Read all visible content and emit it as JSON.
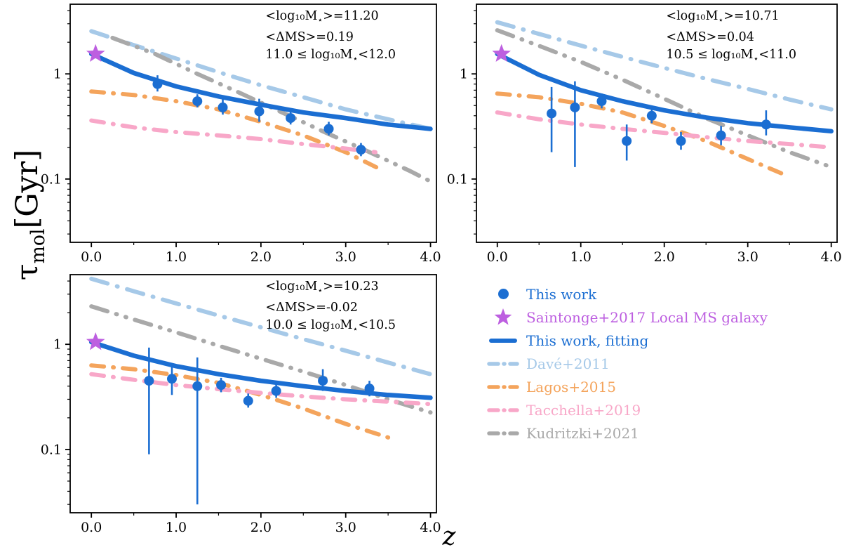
{
  "figure": {
    "background": "#ffffff",
    "y_axis_label": {
      "tau": "τ",
      "sub": "mol",
      "unit": "[Gyr]"
    },
    "x_axis_label": "z"
  },
  "colors": {
    "this_work": "#1b6ed2",
    "saintonge": "#bd5fe0",
    "dave": "#a6c9e8",
    "lagos": "#f4a45c",
    "tacchella": "#f8a7c8",
    "kudritzki": "#a9a9a9"
  },
  "legend": {
    "items": [
      {
        "label": "This work",
        "marker": "circle",
        "color_key": "this_work"
      },
      {
        "label": "Saintonge+2017 Local MS galaxy",
        "marker": "star",
        "color_key": "saintonge"
      },
      {
        "label": "This work, fitting",
        "marker": "solid_line",
        "color_key": "this_work"
      },
      {
        "label": "Davé+2011",
        "marker": "dashdot_line",
        "color_key": "dave"
      },
      {
        "label": "Lagos+2015",
        "marker": "dashdot_line",
        "color_key": "lagos"
      },
      {
        "label": "Tacchella+2019",
        "marker": "dashdot_line",
        "color_key": "tacchella"
      },
      {
        "label": "Kudritzki+2021",
        "marker": "dashdot_line",
        "color_key": "kudritzki"
      }
    ]
  },
  "chart_data": {
    "type": "scatter",
    "description": "Molecular gas depletion time vs redshift in three stellar-mass bins, log y-scale, with literature comparison curves",
    "x_axis": {
      "label": "z",
      "range": [
        -0.25,
        4.07
      ],
      "values": [
        0,
        1,
        2,
        3,
        4
      ],
      "ticks": [
        "0.0",
        "1.0",
        "2.0",
        "3.0",
        "4.0"
      ]
    },
    "y_axis": {
      "label": "tau_mol [Gyr]",
      "scale": "log",
      "range": [
        0.025,
        4.6
      ],
      "values": [
        1,
        0.1
      ],
      "ticks": [
        "1",
        "0.1"
      ]
    },
    "panels": [
      {
        "name": "logM-11.0-12.0",
        "annotation": [
          "<log₁₀M⋆>=11.20",
          "<ΔMS>=0.19",
          "11.0 ≤ log₁₀M⋆<12.0"
        ],
        "star": {
          "z": 0.05,
          "tau": 1.55
        },
        "points": {
          "z": [
            0.78,
            1.25,
            1.55,
            1.98,
            2.35,
            2.8,
            3.18
          ],
          "tau": [
            0.8,
            0.55,
            0.48,
            0.44,
            0.38,
            0.3,
            0.19
          ],
          "err_lo": [
            0.12,
            0.07,
            0.07,
            0.09,
            0.05,
            0.04,
            0.025
          ],
          "err_hi": [
            0.17,
            0.09,
            0.11,
            0.14,
            0.06,
            0.05,
            0.03
          ]
        },
        "fit": [
          [
            0,
            1.55
          ],
          [
            0.5,
            1.02
          ],
          [
            1,
            0.76
          ],
          [
            1.5,
            0.61
          ],
          [
            2,
            0.51
          ],
          [
            2.5,
            0.43
          ],
          [
            3,
            0.38
          ],
          [
            3.5,
            0.33
          ],
          [
            4,
            0.3
          ]
        ],
        "dave": [
          [
            0,
            2.55
          ],
          [
            0.5,
            1.88
          ],
          [
            1,
            1.4
          ],
          [
            1.5,
            1.04
          ],
          [
            2,
            0.78
          ],
          [
            2.5,
            0.6
          ],
          [
            3,
            0.46
          ],
          [
            3.5,
            0.37
          ],
          [
            4,
            0.3
          ]
        ],
        "kudritzki": [
          [
            0.25,
            2.2
          ],
          [
            0.75,
            1.55
          ],
          [
            1.25,
            1.0
          ],
          [
            1.75,
            0.66
          ],
          [
            2.25,
            0.43
          ],
          [
            2.75,
            0.28
          ],
          [
            3.25,
            0.185
          ],
          [
            3.75,
            0.12
          ],
          [
            4,
            0.095
          ]
        ],
        "lagos": [
          [
            0,
            0.68
          ],
          [
            0.5,
            0.63
          ],
          [
            1,
            0.55
          ],
          [
            1.5,
            0.46
          ],
          [
            2,
            0.35
          ],
          [
            2.5,
            0.26
          ],
          [
            3,
            0.18
          ],
          [
            3.4,
            0.125
          ]
        ],
        "tacchella": [
          [
            0,
            0.36
          ],
          [
            0.5,
            0.31
          ],
          [
            1,
            0.28
          ],
          [
            1.5,
            0.26
          ],
          [
            2,
            0.24
          ],
          [
            2.5,
            0.215
          ],
          [
            3,
            0.195
          ],
          [
            3.35,
            0.18
          ]
        ]
      },
      {
        "name": "logM-10.5-11.0",
        "annotation": [
          "<log₁₀M⋆>=10.71",
          "<ΔMS>=0.04",
          "10.5 ≤ log₁₀M⋆<11.0"
        ],
        "star": {
          "z": 0.05,
          "tau": 1.55
        },
        "points": {
          "z": [
            0.65,
            0.93,
            1.25,
            1.55,
            1.85,
            2.2,
            2.68,
            3.22
          ],
          "tau": [
            0.42,
            0.48,
            0.55,
            0.23,
            0.4,
            0.23,
            0.26,
            0.33
          ],
          "err_lo": [
            0.24,
            0.35,
            0.08,
            0.08,
            0.06,
            0.04,
            0.05,
            0.07
          ],
          "err_hi": [
            0.33,
            0.37,
            0.1,
            0.1,
            0.07,
            0.05,
            0.06,
            0.12
          ]
        },
        "fit": [
          [
            0,
            1.55
          ],
          [
            0.5,
            0.98
          ],
          [
            1,
            0.7
          ],
          [
            1.5,
            0.55
          ],
          [
            2,
            0.45
          ],
          [
            2.5,
            0.385
          ],
          [
            3,
            0.34
          ],
          [
            3.5,
            0.31
          ],
          [
            4,
            0.285
          ]
        ],
        "dave": [
          [
            0,
            3.1
          ],
          [
            0.5,
            2.4
          ],
          [
            1,
            1.86
          ],
          [
            1.5,
            1.45
          ],
          [
            2,
            1.14
          ],
          [
            2.5,
            0.9
          ],
          [
            3,
            0.72
          ],
          [
            3.5,
            0.57
          ],
          [
            4,
            0.46
          ]
        ],
        "kudritzki": [
          [
            0,
            2.6
          ],
          [
            0.5,
            1.85
          ],
          [
            1,
            1.3
          ],
          [
            1.5,
            0.88
          ],
          [
            2,
            0.58
          ],
          [
            2.5,
            0.38
          ],
          [
            3,
            0.26
          ],
          [
            3.5,
            0.18
          ],
          [
            4,
            0.13
          ]
        ],
        "lagos": [
          [
            0,
            0.65
          ],
          [
            0.5,
            0.6
          ],
          [
            1,
            0.52
          ],
          [
            1.5,
            0.43
          ],
          [
            2,
            0.32
          ],
          [
            2.5,
            0.23
          ],
          [
            3,
            0.155
          ],
          [
            3.5,
            0.105
          ]
        ],
        "tacchella": [
          [
            0,
            0.43
          ],
          [
            0.5,
            0.37
          ],
          [
            1,
            0.33
          ],
          [
            1.5,
            0.3
          ],
          [
            2,
            0.275
          ],
          [
            2.5,
            0.25
          ],
          [
            3,
            0.23
          ],
          [
            3.5,
            0.215
          ],
          [
            4,
            0.2
          ]
        ]
      },
      {
        "name": "logM-10.0-10.5",
        "annotation": [
          "<log₁₀M⋆>=10.23",
          "<ΔMS>=-0.02",
          "10.0 ≤ log₁₀M⋆<10.5"
        ],
        "star": {
          "z": 0.05,
          "tau": 1.05
        },
        "points": {
          "z": [
            0.68,
            0.95,
            1.25,
            1.53,
            1.85,
            2.18,
            2.73,
            3.28
          ],
          "tau": [
            0.45,
            0.47,
            0.4,
            0.41,
            0.29,
            0.36,
            0.45,
            0.38
          ],
          "err_lo": [
            0.36,
            0.14,
            0.37,
            0.06,
            0.04,
            0.05,
            0.09,
            0.06
          ],
          "err_hi": [
            0.48,
            0.16,
            0.35,
            0.07,
            0.05,
            0.06,
            0.13,
            0.07
          ]
        },
        "fit": [
          [
            0,
            1.05
          ],
          [
            0.5,
            0.78
          ],
          [
            1,
            0.62
          ],
          [
            1.5,
            0.52
          ],
          [
            2,
            0.45
          ],
          [
            2.5,
            0.4
          ],
          [
            3,
            0.36
          ],
          [
            3.5,
            0.33
          ],
          [
            4,
            0.31
          ]
        ],
        "dave": [
          [
            0,
            4.2
          ],
          [
            0.5,
            3.2
          ],
          [
            1,
            2.45
          ],
          [
            1.5,
            1.88
          ],
          [
            2,
            1.45
          ],
          [
            2.5,
            1.12
          ],
          [
            3,
            0.87
          ],
          [
            3.5,
            0.67
          ],
          [
            4,
            0.52
          ]
        ],
        "kudritzki": [
          [
            0,
            2.3
          ],
          [
            0.5,
            1.72
          ],
          [
            1,
            1.3
          ],
          [
            1.5,
            0.97
          ],
          [
            2,
            0.73
          ],
          [
            2.5,
            0.55
          ],
          [
            3,
            0.41
          ],
          [
            3.5,
            0.3
          ],
          [
            4,
            0.225
          ]
        ],
        "lagos": [
          [
            0,
            0.63
          ],
          [
            0.5,
            0.58
          ],
          [
            1,
            0.51
          ],
          [
            1.5,
            0.43
          ],
          [
            2,
            0.33
          ],
          [
            2.5,
            0.245
          ],
          [
            3,
            0.175
          ],
          [
            3.5,
            0.13
          ]
        ],
        "tacchella": [
          [
            0,
            0.52
          ],
          [
            0.5,
            0.46
          ],
          [
            1,
            0.41
          ],
          [
            1.5,
            0.375
          ],
          [
            2,
            0.345
          ],
          [
            2.5,
            0.32
          ],
          [
            3,
            0.3
          ],
          [
            3.5,
            0.285
          ],
          [
            4,
            0.27
          ]
        ]
      }
    ]
  }
}
